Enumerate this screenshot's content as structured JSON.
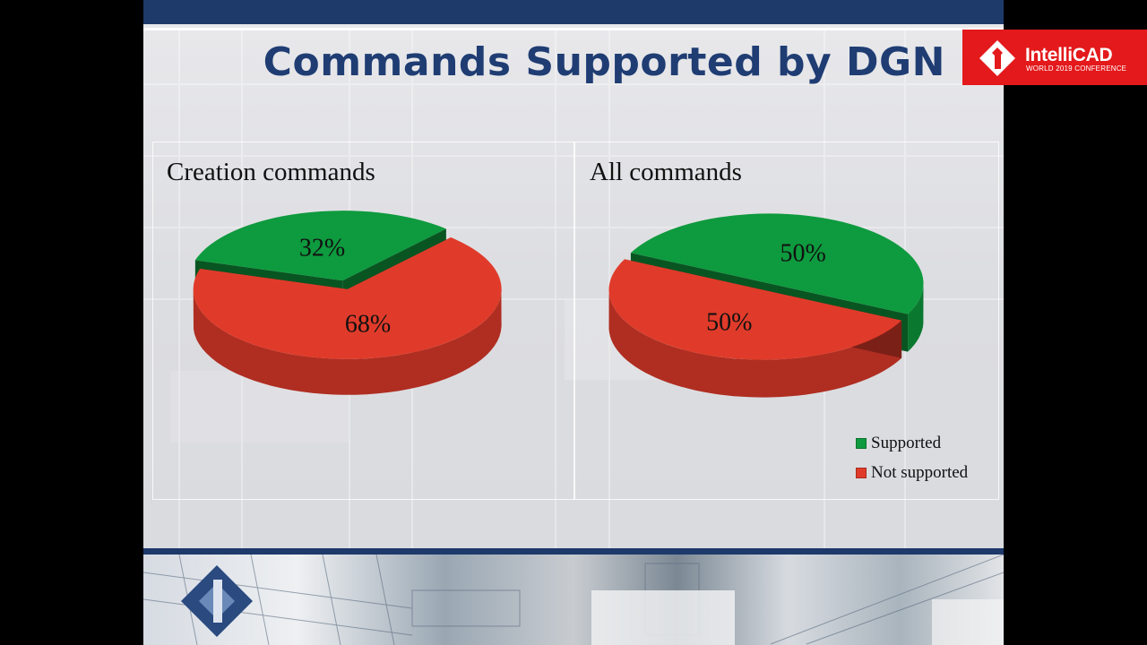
{
  "slide": {
    "title": "Commands Supported by DGN"
  },
  "colors": {
    "supported": "#0e9a3e",
    "not_supported": "#e03b2a",
    "brand_blue": "#1e3a6b",
    "brand_red": "#e3191b"
  },
  "chart_data": [
    {
      "type": "pie",
      "title": "Creation commands",
      "slices": [
        {
          "name": "Supported",
          "value": 32,
          "label": "32%"
        },
        {
          "name": "Not supported",
          "value": 68,
          "label": "68%"
        }
      ]
    },
    {
      "type": "pie",
      "title": "All commands",
      "slices": [
        {
          "name": "Supported",
          "value": 50,
          "label": "50%"
        },
        {
          "name": "Not supported",
          "value": 50,
          "label": "50%"
        }
      ]
    }
  ],
  "legend": {
    "placement": "bottom-right",
    "items": [
      {
        "label": "Supported",
        "color_key": "supported"
      },
      {
        "label": "Not supported",
        "color_key": "not_supported"
      }
    ]
  },
  "logo": {
    "name": "IntelliCAD",
    "subtitle": "WORLD 2019 CONFERENCE",
    "icon": "intellicad-logo-icon"
  },
  "footer": {
    "icon": "intellicad-diamond-icon"
  }
}
